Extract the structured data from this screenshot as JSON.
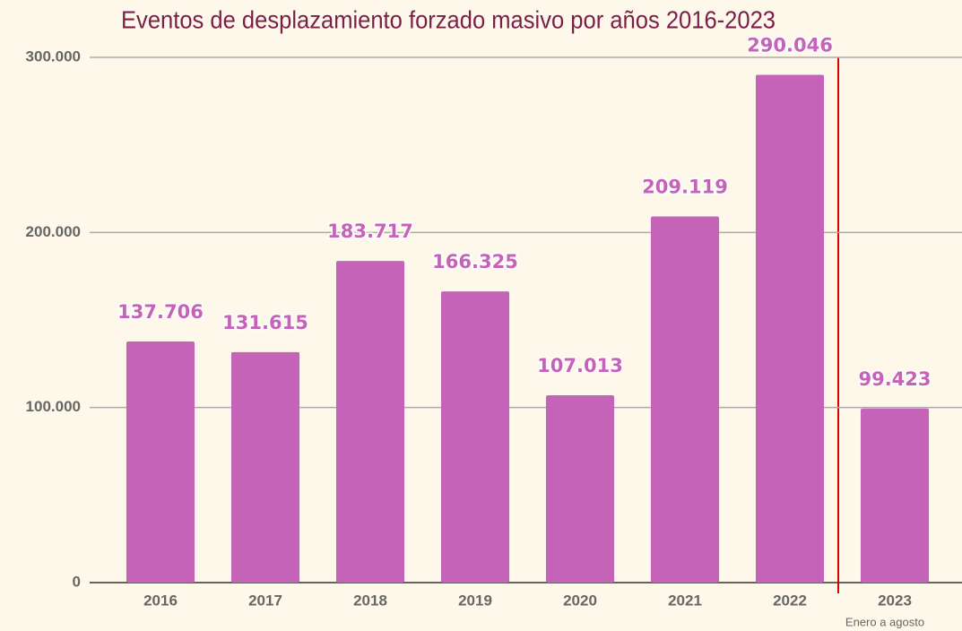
{
  "chart_data": {
    "type": "bar",
    "title": "Eventos de desplazamiento forzado masivo por años 2016-2023",
    "categories": [
      "2016",
      "2017",
      "2018",
      "2019",
      "2020",
      "2021",
      "2022",
      "2023"
    ],
    "values": [
      137706,
      131615,
      183717,
      166325,
      107013,
      209119,
      290046,
      99423
    ],
    "value_labels": [
      "137.706",
      "131.615",
      "183.717",
      "166.325",
      "107.013",
      "209.119",
      "290.046",
      "99.423"
    ],
    "color": "#c463b8",
    "ylim": [
      0,
      300000
    ],
    "yticks": [
      0,
      {
        "value": 100000,
        "label": "100.000"
      },
      {
        "value": 200000,
        "label": "200.000"
      },
      {
        "value": 300000,
        "label": "300.000"
      }
    ],
    "grid": true,
    "annotations": [
      "Enero a agosto"
    ]
  }
}
